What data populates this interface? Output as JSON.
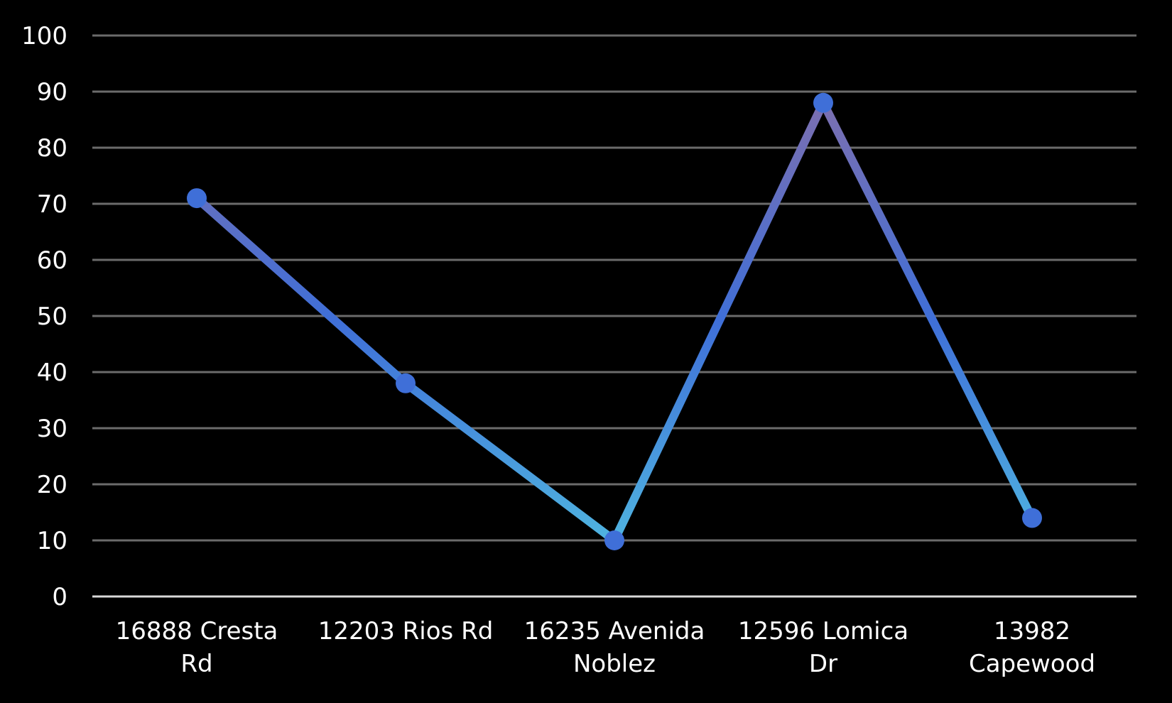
{
  "chart_data": {
    "type": "line",
    "title": "",
    "xlabel": "",
    "ylabel": "",
    "categories": [
      [
        "16888 Cresta",
        "Rd"
      ],
      [
        "12203 Rios Rd"
      ],
      [
        "16235 Avenida",
        "Noblez"
      ],
      [
        "12596 Lomica",
        "Dr"
      ],
      [
        "13982",
        "Capewood"
      ]
    ],
    "series": [
      {
        "values": [
          71,
          38,
          10,
          88,
          14
        ]
      }
    ],
    "ylim": [
      0,
      100
    ],
    "yticks": [
      0,
      10,
      20,
      30,
      40,
      50,
      60,
      70,
      80,
      90,
      100
    ],
    "grid": true,
    "legend": "none",
    "colors": {
      "background": "#000000",
      "grid": "#6b6b6b",
      "axis": "#d9d9d9",
      "text": "#ffffff",
      "marker": "#3f6fd8",
      "line_high": "#7b6fb0",
      "line_mid": "#3f6fd8",
      "line_low": "#4fb3e0"
    }
  }
}
